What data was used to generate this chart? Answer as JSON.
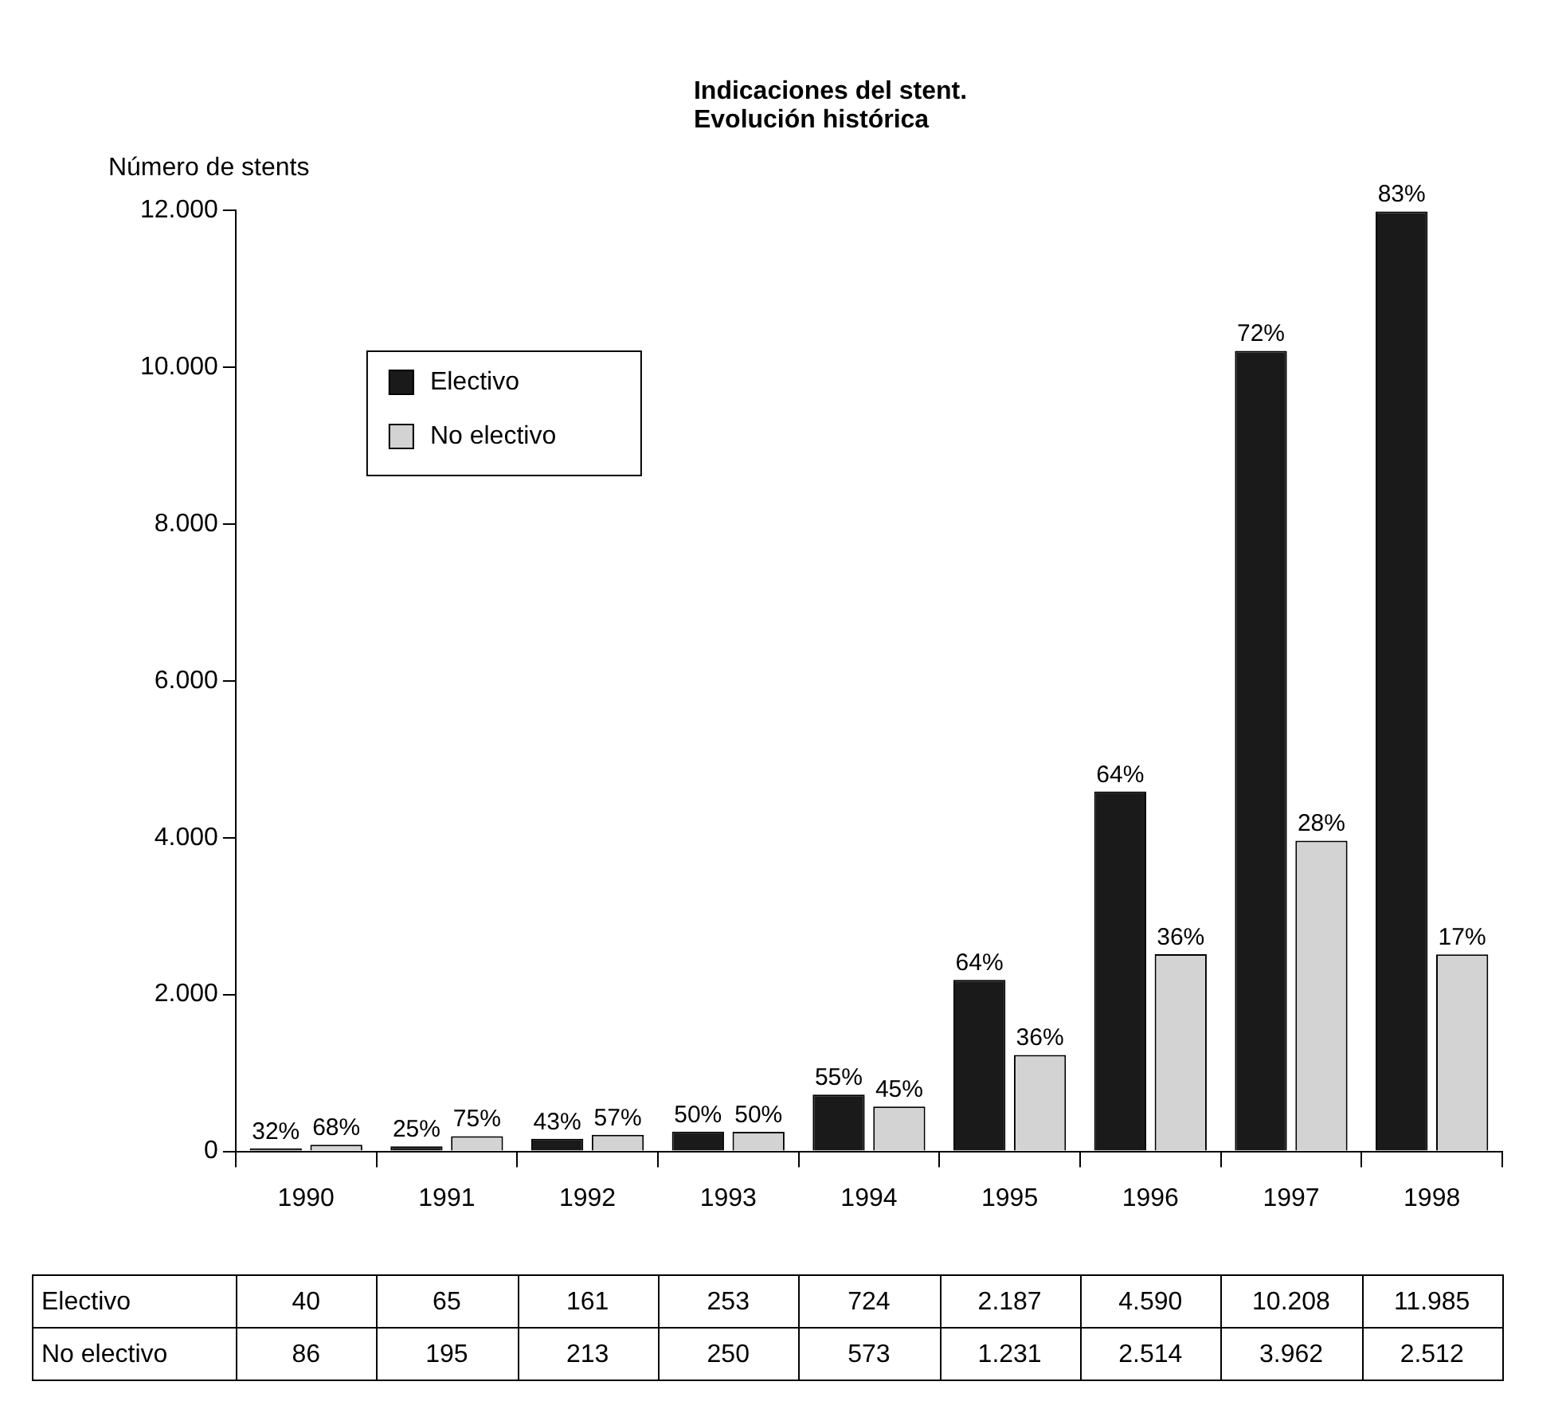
{
  "chart_data": {
    "type": "bar",
    "title": "Indicaciones del stent.",
    "subtitle": "Evolución histórica",
    "ylabel": "Número de stents",
    "categories": [
      "1990",
      "1991",
      "1992",
      "1993",
      "1994",
      "1995",
      "1996",
      "1997",
      "1998"
    ],
    "series": [
      {
        "name": "Electivo",
        "color": "#1a1a1a",
        "values": [
          40,
          65,
          161,
          253,
          724,
          2187,
          4590,
          10208,
          11985
        ],
        "value_labels": [
          "40",
          "65",
          "161",
          "253",
          "724",
          "2.187",
          "4.590",
          "10.208",
          "11.985"
        ]
      },
      {
        "name": "No electivo",
        "color": "#d3d3d3",
        "values": [
          86,
          195,
          213,
          250,
          573,
          1231,
          2514,
          3962,
          2512
        ],
        "value_labels": [
          "86",
          "195",
          "213",
          "250",
          "573",
          "1.231",
          "2.514",
          "3.962",
          "2.512"
        ]
      }
    ],
    "annotations": [
      {
        "text": "32%",
        "x": "1990",
        "y": 40
      },
      {
        "text": "68%",
        "x": "1990",
        "y": 86
      },
      {
        "text": "25%",
        "x": "1991",
        "y": 65
      },
      {
        "text": "75%",
        "x": "1991",
        "y": 195
      },
      {
        "text": "43%",
        "x": "1992",
        "y": 161
      },
      {
        "text": "57%",
        "x": "1992",
        "y": 213
      },
      {
        "text": "50%",
        "x": "1993",
        "y": 253
      },
      {
        "text": "50%",
        "x": "1993",
        "y": 250
      },
      {
        "text": "55%",
        "x": "1994",
        "y": 724
      },
      {
        "text": "45%",
        "x": "1994",
        "y": 573
      },
      {
        "text": "64%",
        "x": "1995",
        "y": 2187
      },
      {
        "text": "36%",
        "x": "1995",
        "y": 1231
      },
      {
        "text": "64%",
        "x": "1996",
        "y": 4590
      },
      {
        "text": "36%",
        "x": "1996",
        "y": 2514
      },
      {
        "text": "72%",
        "x": "1997",
        "y": 10208
      },
      {
        "text": "28%",
        "x": "1997",
        "y": 3962
      },
      {
        "text": "83%",
        "x": "1998",
        "y": 11985
      },
      {
        "text": "17%",
        "x": "1998",
        "y": 2512
      }
    ],
    "ylim": [
      0,
      12000
    ],
    "yticks": [
      0,
      {
        "value": 2000,
        "label": "2.000"
      },
      {
        "value": 4000,
        "label": "4.000"
      },
      {
        "value": 6000,
        "label": "6.000"
      },
      {
        "value": 8000,
        "label": "8.000"
      },
      {
        "value": 10000,
        "label": "10.000"
      },
      {
        "value": 12000,
        "label": "12.000"
      }
    ],
    "grid": false,
    "legend": "top left"
  }
}
